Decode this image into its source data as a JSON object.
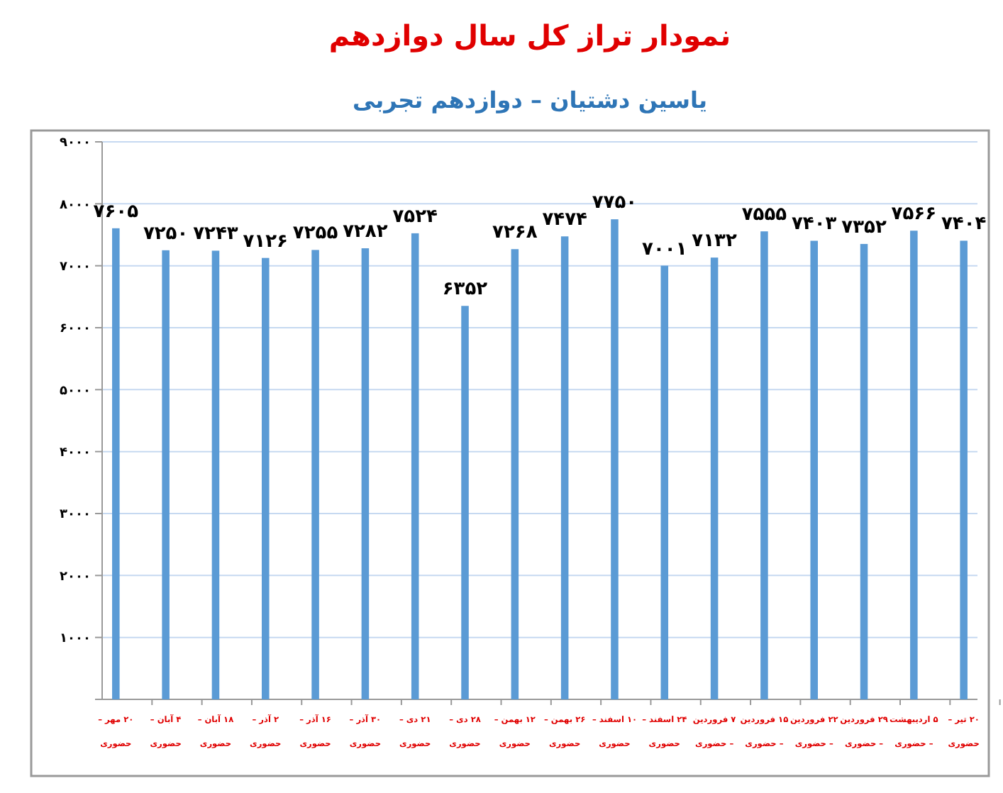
{
  "chart_data": {
    "type": "bar",
    "title": "نمودار تراز کل سال دوازدهم",
    "subtitle": "یاسین دشتیان – دوازدهم تجربی",
    "categories": [
      "۲۰ مهر –\nحضوری",
      "۴ آبان –\nحضوری",
      "۱۸ آبان –\nحضوری",
      "۲ آذر –\nحضوری",
      "۱۶ آذر –\nحضوری",
      "۳۰ آذر –\nحضوری",
      "۲۱ دی –\nحضوری",
      "۲۸ دی –\nحضوری",
      "۱۲ بهمن –\nحضوری",
      "۲۶ بهمن –\nحضوری",
      "۱۰ اسفند –\nحضوری",
      "۲۴ اسفند –\nحضوری",
      "۷ فروردین\n– حضوری",
      "۱۵ فروردین\n– حضوری",
      "۲۲ فروردین\n– حضوری",
      "۲۹ فروردین\n– حضوری",
      "۵ اردیبهشت\n– حضوری",
      "۲۰ تیر –\nحضوری"
    ],
    "values": [
      7605,
      7250,
      7243,
      7126,
      7255,
      7282,
      7524,
      6352,
      7268,
      7474,
      7750,
      7001,
      7132,
      7555,
      7403,
      7352,
      7566,
      7404
    ],
    "value_labels": [
      "۷۶۰۵",
      "۷۲۵۰",
      "۷۲۴۳",
      "۷۱۲۶",
      "۷۲۵۵",
      "۷۲۸۲",
      "۷۵۲۴",
      "۶۳۵۲",
      "۷۲۶۸",
      "۷۴۷۴",
      "۷۷۵۰",
      "۷۰۰۱",
      "۷۱۳۲",
      "۷۵۵۵",
      "۷۴۰۳",
      "۷۳۵۲",
      "۷۵۶۶",
      "۷۴۰۴"
    ],
    "color": "#5b9bd5",
    "ylim": [
      0,
      9000
    ],
    "yticks": [
      {
        "value": 0,
        "label": null
      },
      {
        "value": 1000,
        "label": "۱۰۰۰"
      },
      {
        "value": 2000,
        "label": "۲۰۰۰"
      },
      {
        "value": 3000,
        "label": "۳۰۰۰"
      },
      {
        "value": 4000,
        "label": "۴۰۰۰"
      },
      {
        "value": 5000,
        "label": "۵۰۰۰"
      },
      {
        "value": 6000,
        "label": "۶۰۰۰"
      },
      {
        "value": 7000,
        "label": "۷۰۰۰"
      },
      {
        "value": 8000,
        "label": "۸۰۰۰"
      },
      {
        "value": 9000,
        "label": "۹۰۰۰"
      }
    ],
    "grid": "y"
  }
}
